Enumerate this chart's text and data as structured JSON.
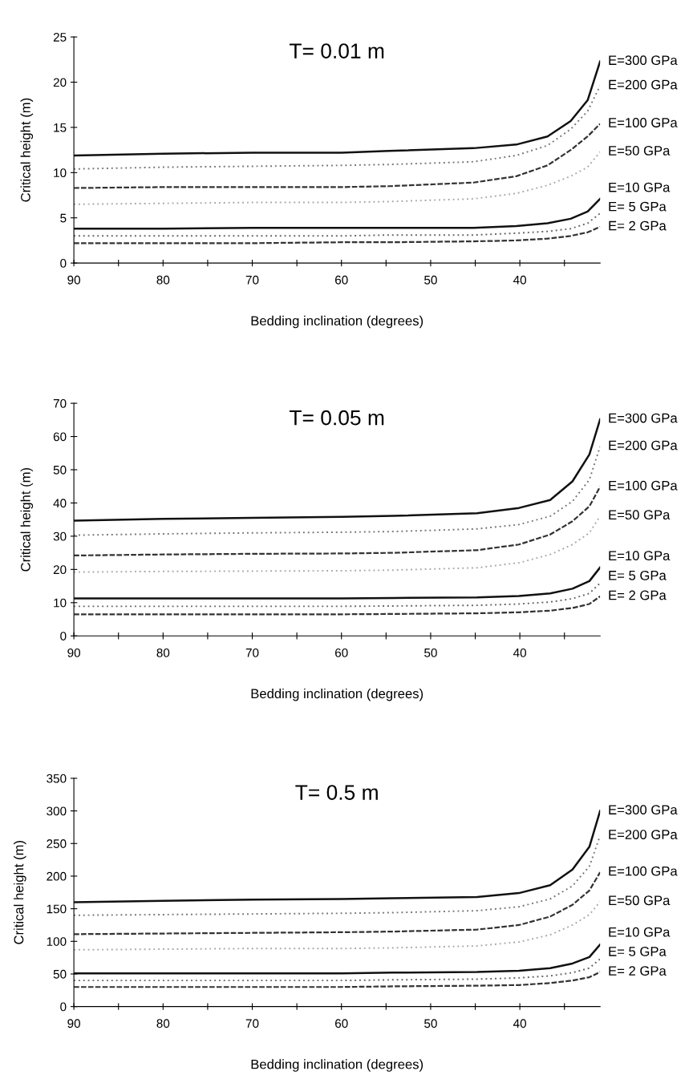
{
  "chart_data": [
    {
      "type": "line",
      "title": "T= 0.01 m",
      "xlabel": "Bedding inclination (degrees)",
      "ylabel": "Critical height (m)",
      "xlim": [
        90,
        31
      ],
      "ylim": [
        0,
        25
      ],
      "xticks": [
        90,
        {
          "value": 85,
          "label": null
        },
        80,
        {
          "value": 75,
          "label": null
        },
        70,
        {
          "value": 65,
          "label": null
        },
        60,
        {
          "value": 55,
          "label": null
        },
        50,
        {
          "value": 45,
          "label": null
        },
        40,
        {
          "value": 35,
          "label": null
        }
      ],
      "yticks": [
        0,
        5,
        10,
        15,
        20,
        25
      ],
      "x": [
        90,
        80,
        70,
        60,
        54.7,
        45.2,
        40.4,
        36.9,
        34.3,
        32.4,
        31.0
      ],
      "series": [
        {
          "name": "E=300 GPa",
          "color": "#111111",
          "line_style": "solid",
          "values": [
            11.9,
            12.1,
            12.2,
            12.2,
            12.4,
            12.7,
            13.1,
            14.0,
            15.7,
            18.0,
            22.3
          ]
        },
        {
          "name": "E=200 GPa",
          "color": "#777777",
          "line_style": "dotted",
          "values": [
            10.4,
            10.6,
            10.7,
            10.8,
            10.9,
            11.2,
            11.9,
            13.0,
            14.8,
            16.8,
            19.6
          ]
        },
        {
          "name": "E=100 GPa",
          "color": "#333333",
          "line_style": "dashed",
          "values": [
            8.3,
            8.4,
            8.4,
            8.4,
            8.5,
            8.9,
            9.6,
            10.8,
            12.5,
            14.0,
            15.4
          ]
        },
        {
          "name": "E=50 GPa",
          "color": "#aaaaaa",
          "line_style": "dotted",
          "values": [
            6.5,
            6.6,
            6.7,
            6.7,
            6.8,
            7.1,
            7.7,
            8.6,
            9.6,
            10.6,
            12.3
          ]
        },
        {
          "name": "E=10 GPa",
          "color": "#111111",
          "line_style": "solid",
          "values": [
            3.8,
            3.8,
            3.9,
            3.9,
            3.9,
            3.9,
            4.1,
            4.4,
            4.9,
            5.7,
            7.1
          ]
        },
        {
          "name": "E= 5 GPa",
          "color": "#666666",
          "line_style": "dotted",
          "values": [
            3.0,
            3.0,
            3.0,
            3.0,
            3.1,
            3.1,
            3.3,
            3.5,
            3.8,
            4.4,
            5.5
          ]
        },
        {
          "name": "E= 2 GPa",
          "color": "#333333",
          "line_style": "dashed",
          "values": [
            2.2,
            2.2,
            2.2,
            2.3,
            2.3,
            2.4,
            2.5,
            2.7,
            3.0,
            3.4,
            4.0
          ]
        }
      ]
    },
    {
      "type": "line",
      "title": "T= 0.05 m",
      "xlabel": "Bedding inclination (degrees)",
      "ylabel": "Critical height (m)",
      "xlim": [
        90,
        31
      ],
      "ylim": [
        0,
        70
      ],
      "xticks": [
        90,
        {
          "value": 85,
          "label": null
        },
        80,
        {
          "value": 75,
          "label": null
        },
        70,
        {
          "value": 65,
          "label": null
        },
        60,
        {
          "value": 55,
          "label": null
        },
        50,
        {
          "value": 45,
          "label": null
        },
        40,
        {
          "value": 35,
          "label": null
        }
      ],
      "yticks": [
        0,
        10,
        20,
        30,
        40,
        50,
        60,
        70
      ],
      "x": [
        90,
        80,
        70,
        60,
        54.2,
        44.8,
        40.1,
        36.6,
        34.1,
        32.2,
        31.0
      ],
      "series": [
        {
          "name": "E=300 GPa",
          "color": "#111111",
          "line_style": "solid",
          "values": [
            34.7,
            35.2,
            35.5,
            35.8,
            36.1,
            36.9,
            38.5,
            40.9,
            46.5,
            54.6,
            65.2
          ]
        },
        {
          "name": "E=200 GPa",
          "color": "#777777",
          "line_style": "dotted",
          "values": [
            30.3,
            30.7,
            31.0,
            31.2,
            31.4,
            32.2,
            33.5,
            36.0,
            40.5,
            47.0,
            57.0
          ]
        },
        {
          "name": "E=100 GPa",
          "color": "#333333",
          "line_style": "dashed",
          "values": [
            24.2,
            24.5,
            24.7,
            24.8,
            25.0,
            25.8,
            27.5,
            30.5,
            34.5,
            39.0,
            44.9
          ]
        },
        {
          "name": "E=50 GPa",
          "color": "#aaaaaa",
          "line_style": "dotted",
          "values": [
            19.2,
            19.4,
            19.5,
            19.6,
            19.8,
            20.5,
            22.0,
            24.5,
            27.5,
            31.0,
            36.1
          ]
        },
        {
          "name": "E=10 GPa",
          "color": "#111111",
          "line_style": "solid",
          "values": [
            11.3,
            11.3,
            11.3,
            11.3,
            11.4,
            11.6,
            12.0,
            12.8,
            14.2,
            16.5,
            20.6
          ]
        },
        {
          "name": "E= 5 GPa",
          "color": "#666666",
          "line_style": "dotted",
          "values": [
            8.9,
            8.9,
            8.9,
            8.9,
            9.0,
            9.2,
            9.6,
            10.2,
            11.2,
            12.8,
            15.9
          ]
        },
        {
          "name": "E= 2 GPa",
          "color": "#333333",
          "line_style": "dashed",
          "values": [
            6.5,
            6.5,
            6.5,
            6.5,
            6.6,
            6.8,
            7.1,
            7.6,
            8.4,
            9.6,
            11.9
          ]
        }
      ]
    },
    {
      "type": "line",
      "title": "T= 0.5 m",
      "xlabel": "Bedding inclination (degrees)",
      "ylabel": "Critical height (m)",
      "xlim": [
        90,
        31
      ],
      "ylim": [
        0,
        350
      ],
      "xticks": [
        90,
        {
          "value": 85,
          "label": null
        },
        80,
        {
          "value": 75,
          "label": null
        },
        70,
        {
          "value": 65,
          "label": null
        },
        60,
        {
          "value": 55,
          "label": null
        },
        50,
        {
          "value": 45,
          "label": null
        },
        40,
        {
          "value": 35,
          "label": null
        }
      ],
      "yticks": [
        0,
        50,
        100,
        150,
        200,
        250,
        300,
        350
      ],
      "x": [
        90,
        80,
        70,
        60,
        54.2,
        44.8,
        40.1,
        36.6,
        34.1,
        32.2,
        31.0
      ],
      "series": [
        {
          "name": "E=300 GPa",
          "color": "#111111",
          "line_style": "solid",
          "values": [
            160,
            162,
            164,
            165,
            166,
            168,
            174,
            186,
            210,
            245,
            300
          ]
        },
        {
          "name": "E=200 GPa",
          "color": "#777777",
          "line_style": "dotted",
          "values": [
            140,
            141,
            142,
            143,
            144,
            147,
            153,
            165,
            185,
            215,
            262
          ]
        },
        {
          "name": "E=100 GPa",
          "color": "#333333",
          "line_style": "dashed",
          "values": [
            111,
            112,
            113,
            114,
            115,
            118,
            125,
            138,
            156,
            178,
            206
          ]
        },
        {
          "name": "E=50 GPa",
          "color": "#aaaaaa",
          "line_style": "dotted",
          "values": [
            87,
            88,
            89,
            89,
            90,
            93,
            99,
            110,
            125,
            141,
            161
          ]
        },
        {
          "name": "E=10 GPa",
          "color": "#111111",
          "line_style": "solid",
          "values": [
            51,
            51,
            51,
            51,
            52,
            53,
            55,
            59,
            66,
            76,
            95
          ]
        },
        {
          "name": "E= 5 GPa",
          "color": "#666666",
          "line_style": "dotted",
          "values": [
            40,
            40,
            40,
            40,
            41,
            42,
            44,
            47,
            52,
            59,
            73
          ]
        },
        {
          "name": "E= 2 GPa",
          "color": "#333333",
          "line_style": "dashed",
          "values": [
            30,
            30,
            30,
            30,
            31,
            32,
            33,
            36,
            40,
            45,
            53
          ]
        }
      ]
    }
  ]
}
